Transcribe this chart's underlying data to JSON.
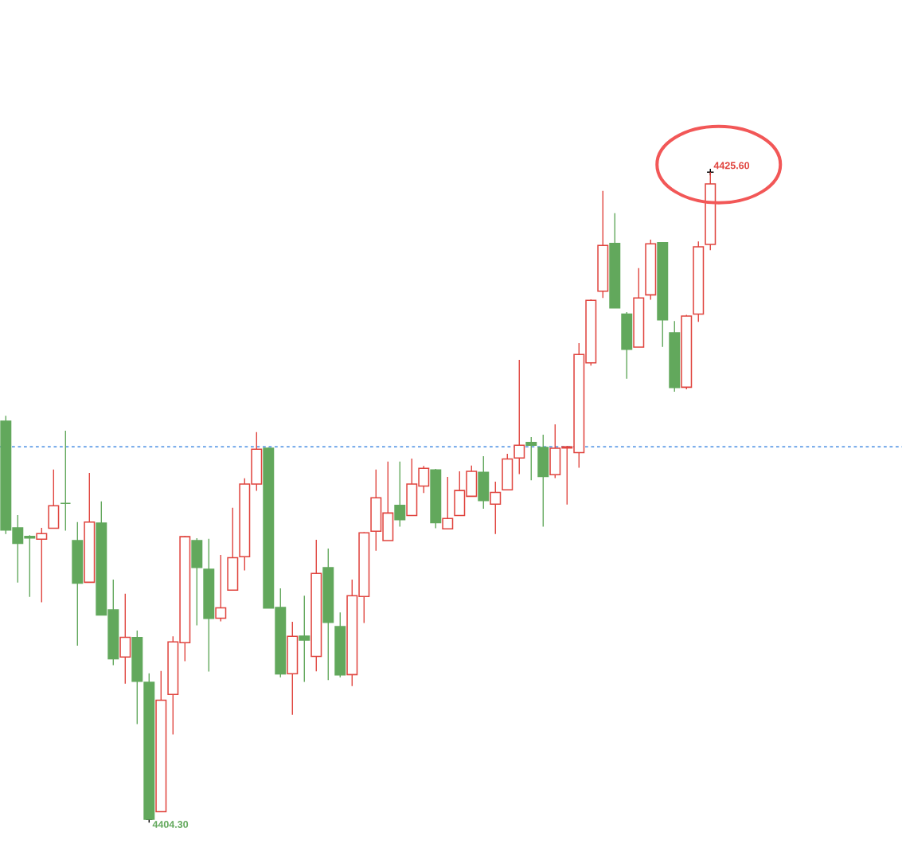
{
  "chart_data": {
    "type": "candlestick",
    "categories": [
      null,
      null,
      null,
      null,
      null,
      null,
      null,
      null,
      null,
      null,
      null,
      null,
      null,
      null,
      null,
      null,
      null,
      null,
      null,
      null,
      null,
      null,
      null,
      null,
      null,
      null,
      null,
      null,
      null,
      null,
      null,
      null,
      null,
      null,
      null,
      null,
      null,
      null,
      null,
      null,
      null,
      null,
      null,
      null,
      null,
      null,
      null,
      null,
      null,
      null,
      null,
      null,
      null,
      null,
      null,
      null,
      null,
      null,
      null,
      null
    ],
    "ohlc": [
      [
        4417.4,
        4417.58,
        4413.69,
        4413.82
      ],
      [
        4413.89,
        4414.31,
        4412.09,
        4413.38
      ],
      [
        4413.61,
        4413.65,
        4411.62,
        4413.56
      ],
      [
        4413.52,
        4413.89,
        4411.44,
        4413.7
      ],
      [
        4413.88,
        4415.81,
        4413.88,
        4414.62
      ],
      [
        4414.7,
        4417.09,
        4413.8,
        4414.7
      ],
      [
        4413.47,
        4414.08,
        4410.01,
        4412.07
      ],
      [
        4412.1,
        4415.7,
        4412.1,
        4414.08
      ],
      [
        4414.05,
        4414.76,
        4411.02,
        4411.02
      ],
      [
        4411.19,
        4412.19,
        4409.37,
        4409.58
      ],
      [
        4409.64,
        4411.72,
        4408.76,
        4410.29
      ],
      [
        4410.28,
        4410.51,
        4407.43,
        4408.84
      ],
      [
        4408.81,
        4409.1,
        4404.3,
        4404.3
      ],
      [
        4404.55,
        4409.18,
        4404.55,
        4408.22
      ],
      [
        4408.41,
        4410.32,
        4407.09,
        4410.14
      ],
      [
        4410.11,
        4413.62,
        4409.5,
        4413.6
      ],
      [
        4413.47,
        4413.55,
        4410.68,
        4412.59
      ],
      [
        4412.53,
        4413.53,
        4409.16,
        4410.91
      ],
      [
        4410.92,
        4413.0,
        4410.81,
        4411.26
      ],
      [
        4411.84,
        4414.55,
        4411.84,
        4412.91
      ],
      [
        4412.94,
        4415.52,
        4412.49,
        4415.33
      ],
      [
        4415.33,
        4417.04,
        4415.11,
        4416.48
      ],
      [
        4416.51,
        4416.53,
        4411.25,
        4411.25
      ],
      [
        4411.27,
        4411.9,
        4408.97,
        4409.08
      ],
      [
        4409.09,
        4410.8,
        4407.74,
        4410.32
      ],
      [
        4410.33,
        4411.66,
        4408.82,
        4410.2
      ],
      [
        4409.66,
        4413.5,
        4409.17,
        4412.39
      ],
      [
        4412.58,
        4413.21,
        4408.88,
        4410.78
      ],
      [
        4410.64,
        4411.11,
        4408.97,
        4409.05
      ],
      [
        4409.06,
        4412.19,
        4408.68,
        4411.66
      ],
      [
        4411.63,
        4413.75,
        4410.76,
        4413.73
      ],
      [
        4413.78,
        4415.81,
        4413.14,
        4414.88
      ],
      [
        4413.47,
        4416.07,
        4413.47,
        4414.38
      ],
      [
        4414.63,
        4416.07,
        4413.93,
        4414.16
      ],
      [
        4414.3,
        4416.17,
        4414.3,
        4415.33
      ],
      [
        4415.27,
        4415.93,
        4415.04,
        4415.85
      ],
      [
        4415.8,
        4415.83,
        4413.88,
        4414.06
      ],
      [
        4413.86,
        4415.57,
        4413.86,
        4414.2
      ],
      [
        4414.3,
        4415.75,
        4414.3,
        4415.12
      ],
      [
        4414.93,
        4415.94,
        4414.93,
        4415.75
      ],
      [
        4415.72,
        4416.25,
        4414.52,
        4414.79
      ],
      [
        4414.67,
        4415.41,
        4413.69,
        4415.06
      ],
      [
        4415.14,
        4416.33,
        4415.14,
        4416.16
      ],
      [
        4416.19,
        4419.42,
        4415.66,
        4416.61
      ],
      [
        4416.7,
        4416.88,
        4415.46,
        4416.61
      ],
      [
        4416.54,
        4416.96,
        4413.93,
        4415.58
      ],
      [
        4415.64,
        4417.3,
        4415.53,
        4416.51
      ],
      [
        4416.52,
        4416.59,
        4414.66,
        4416.56
      ],
      [
        4416.37,
        4419.97,
        4415.87,
        4419.6
      ],
      [
        4419.32,
        4421.41,
        4419.23,
        4421.38
      ],
      [
        4421.68,
        4424.98,
        4421.46,
        4423.19
      ],
      [
        4423.25,
        4424.25,
        4421.13,
        4421.13
      ],
      [
        4420.93,
        4420.99,
        4418.8,
        4419.77
      ],
      [
        4419.84,
        4422.44,
        4419.84,
        4421.46
      ],
      [
        4421.56,
        4423.38,
        4421.4,
        4423.24
      ],
      [
        4423.28,
        4423.3,
        4419.85,
        4420.74
      ],
      [
        4420.31,
        4420.7,
        4418.37,
        4418.51
      ],
      [
        4418.52,
        4420.9,
        4418.45,
        4420.86
      ],
      [
        4420.93,
        4423.32,
        4420.67,
        4423.14
      ],
      [
        4423.22,
        4425.6,
        4423.03,
        4425.21
      ]
    ],
    "colors": [
      "#62a85c",
      "#62a85c",
      "#62a85c",
      "#e0443e",
      "#e0443e",
      "#62a85c",
      "#62a85c",
      "#e0443e",
      "#62a85c",
      "#62a85c",
      "#e0443e",
      "#62a85c",
      "#62a85c",
      "#e0443e",
      "#e0443e",
      "#e0443e",
      "#62a85c",
      "#62a85c",
      "#e0443e",
      "#e0443e",
      "#e0443e",
      "#e0443e",
      "#62a85c",
      "#62a85c",
      "#e0443e",
      "#62a85c",
      "#e0443e",
      "#62a85c",
      "#62a85c",
      "#e0443e",
      "#e0443e",
      "#e0443e",
      "#e0443e",
      "#62a85c",
      "#e0443e",
      "#e0443e",
      "#62a85c",
      "#e0443e",
      "#e0443e",
      "#e0443e",
      "#62a85c",
      "#e0443e",
      "#e0443e",
      "#e0443e",
      "#62a85c",
      "#62a85c",
      "#e0443e",
      "#e0443e",
      "#e0443e",
      "#e0443e",
      "#e0443e",
      "#62a85c",
      "#62a85c",
      "#e0443e",
      "#e0443e",
      "#62a85c",
      "#62a85c",
      "#e0443e",
      "#e0443e",
      "#e0443e"
    ],
    "annotations": [
      "4425.60",
      "4404.30"
    ],
    "ref_lines": [
      {
        "axis": "y",
        "value": 4416.56,
        "color": "#2277dd",
        "line_style": "dashed"
      }
    ]
  }
}
